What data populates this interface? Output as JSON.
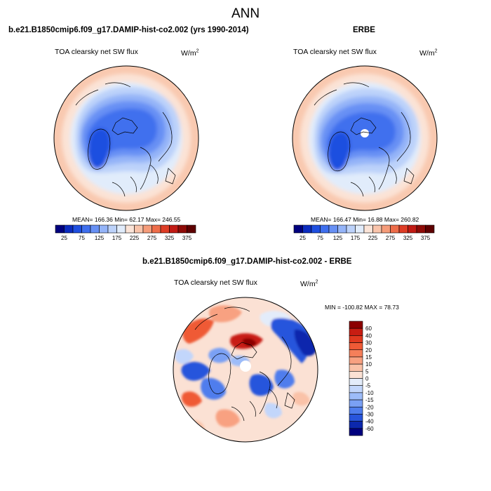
{
  "figure": {
    "title": "ANN"
  },
  "chart_data": [
    {
      "type": "heatmap",
      "title": "b.e21.B1850cmip6.f09_g17.DAMIP-hist-co2.002 (yrs 1990-2014)",
      "variable": "TOA clearsky net SW flux",
      "units": "W/m",
      "units_exp": "2",
      "projection": "north-polar-stereographic",
      "stats_text": "MEAN= 166.36  Min=  62.17  Max= 246.55",
      "stats": {
        "mean": 166.36,
        "min": 62.17,
        "max": 246.55
      },
      "colorbar": {
        "orientation": "horizontal",
        "levels": [
          25,
          50,
          75,
          100,
          125,
          150,
          175,
          200,
          225,
          250,
          275,
          300,
          325,
          350,
          375
        ],
        "tick_labels": [
          "25",
          "75",
          "125",
          "175",
          "225",
          "275",
          "325",
          "375"
        ],
        "colors": [
          "#00007e",
          "#0c2cbf",
          "#1f4fe0",
          "#3f6fee",
          "#6790f4",
          "#94b4f8",
          "#bcd2fa",
          "#e1ecfb",
          "#fbe4d8",
          "#f9c4ab",
          "#f59c7a",
          "#ee6d4a",
          "#de3d26",
          "#c11b14",
          "#8e0b07",
          "#5e0000"
        ]
      }
    },
    {
      "type": "heatmap",
      "title": "ERBE",
      "variable": "TOA clearsky net SW flux",
      "units": "W/m",
      "units_exp": "2",
      "projection": "north-polar-stereographic",
      "stats_text": "MEAN= 166.47  Min=  16.88  Max= 260.82",
      "stats": {
        "mean": 166.47,
        "min": 16.88,
        "max": 260.82
      },
      "colorbar": {
        "orientation": "horizontal",
        "levels": [
          25,
          50,
          75,
          100,
          125,
          150,
          175,
          200,
          225,
          250,
          275,
          300,
          325,
          350,
          375
        ],
        "tick_labels": [
          "25",
          "75",
          "125",
          "175",
          "225",
          "275",
          "325",
          "375"
        ],
        "colors": [
          "#00007e",
          "#0c2cbf",
          "#1f4fe0",
          "#3f6fee",
          "#6790f4",
          "#94b4f8",
          "#bcd2fa",
          "#e1ecfb",
          "#fbe4d8",
          "#f9c4ab",
          "#f59c7a",
          "#ee6d4a",
          "#de3d26",
          "#c11b14",
          "#8e0b07",
          "#5e0000"
        ]
      }
    },
    {
      "type": "heatmap",
      "title": "b.e21.B1850cmip6.f09_g17.DAMIP-hist-co2.002 - ERBE",
      "variable": "TOA clearsky net SW flux",
      "units": "W/m",
      "units_exp": "2",
      "projection": "north-polar-stereographic",
      "stats_text": "MIN = -100.82 MAX =  78.73",
      "stats": {
        "min": -100.82,
        "max": 78.73
      },
      "colorbar": {
        "orientation": "vertical",
        "levels": [
          60,
          40,
          30,
          20,
          15,
          10,
          5,
          0,
          -5,
          -10,
          -15,
          -20,
          -30,
          -40,
          -60
        ],
        "tick_labels": [
          "60",
          "40",
          "30",
          "20",
          "15",
          "10",
          "5",
          "0",
          "-5",
          "-10",
          "-15",
          "-20",
          "-30",
          "-40",
          "-60"
        ],
        "colors": [
          "#8c0000",
          "#c81d12",
          "#e0391f",
          "#ef5a36",
          "#f57f5a",
          "#f8a181",
          "#fac2a8",
          "#fbe1d4",
          "#e3ecfa",
          "#c2d6fb",
          "#9dbcf9",
          "#7aa0f4",
          "#4f7ded",
          "#2855dc",
          "#0c28ad",
          "#00007e"
        ]
      }
    }
  ]
}
